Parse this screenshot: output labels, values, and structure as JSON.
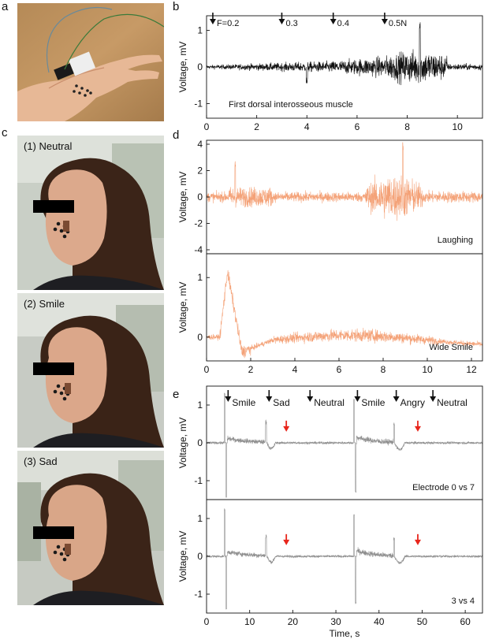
{
  "panels": {
    "a": {
      "letter": "a"
    },
    "b": {
      "letter": "b"
    },
    "c": {
      "letter": "c",
      "photos": [
        {
          "label": "(1) Neutral"
        },
        {
          "label": "(2) Smile"
        },
        {
          "label": "(3) Sad"
        }
      ]
    },
    "d": {
      "letter": "d"
    },
    "e": {
      "letter": "e"
    }
  },
  "colors": {
    "b": "#111111",
    "d": "#f4a278",
    "e": "#8f8f8f",
    "arrow_red": "#e8261c"
  },
  "chart_data": [
    {
      "id": "b",
      "type": "line",
      "ylabel": "Voltage, mV",
      "xlim": [
        0,
        11
      ],
      "ylim": [
        -1.4,
        1.4
      ],
      "xticks": [
        0,
        2,
        4,
        6,
        8,
        10
      ],
      "yticks": [
        -1,
        0,
        1
      ],
      "annotation": "First dorsal interosseous  muscle",
      "force_markers": [
        {
          "x": 0.25,
          "label": "F=0.2"
        },
        {
          "x": 3.0,
          "label": "0.3"
        },
        {
          "x": 5.05,
          "label": "0.4"
        },
        {
          "x": 7.1,
          "label": "0.5N"
        }
      ]
    },
    {
      "id": "d1",
      "type": "line",
      "ylabel": "Voltage, mV",
      "xlim": [
        0,
        12.5
      ],
      "ylim": [
        -4.3,
        4.3
      ],
      "yticks": [
        -4,
        -2,
        0,
        2,
        4
      ],
      "annotation": "Laughing"
    },
    {
      "id": "d2",
      "type": "line",
      "ylabel": "Voltage, mV",
      "xlim": [
        0,
        12.5
      ],
      "ylim": [
        -0.4,
        1.4
      ],
      "xticks": [
        0,
        2,
        4,
        6,
        8,
        10,
        12
      ],
      "yticks": [
        0,
        1
      ],
      "annotation": "Wide Smile"
    },
    {
      "id": "e1",
      "type": "line",
      "ylabel": "Voltage, mV",
      "xlim": [
        0,
        64
      ],
      "ylim": [
        -1.5,
        1.5
      ],
      "yticks": [
        -1,
        0,
        1
      ],
      "annotation": "Electrode 0 vs 7",
      "expression_markers": [
        {
          "x": 5,
          "label": "Smile"
        },
        {
          "x": 14.5,
          "label": "Sad"
        },
        {
          "x": 24,
          "label": "Neutral"
        },
        {
          "x": 35,
          "label": "Smile"
        },
        {
          "x": 44,
          "label": "Angry"
        },
        {
          "x": 52.5,
          "label": "Neutral"
        }
      ],
      "red_arrows": [
        18.5,
        49
      ]
    },
    {
      "id": "e2",
      "type": "line",
      "ylabel": "Voltage, mV",
      "xlabel": "Time, s",
      "xlim": [
        0,
        64
      ],
      "ylim": [
        -1.5,
        1.5
      ],
      "xticks": [
        0,
        10,
        20,
        30,
        40,
        50,
        60
      ],
      "yticks": [
        -1,
        0,
        1
      ],
      "annotation": "3 vs 4",
      "red_arrows": [
        18.5,
        49
      ]
    }
  ]
}
